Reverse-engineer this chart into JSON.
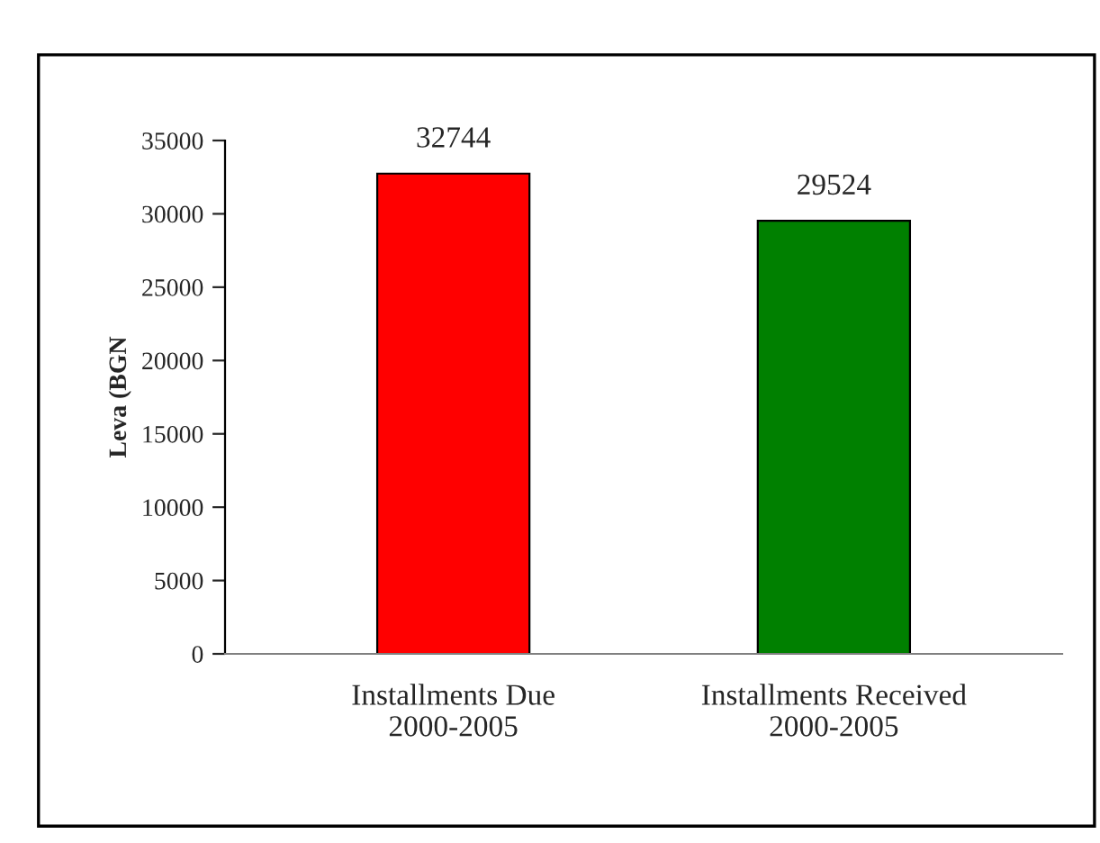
{
  "chart_data": {
    "type": "bar",
    "ylabel": "Leva (BGN",
    "categories": [
      "Installments Due\n2000-2005",
      "Installments Received\n2000-2005"
    ],
    "values": [
      32744,
      29524
    ],
    "colors": [
      "#ff0000",
      "#008000"
    ],
    "ylim": [
      0,
      35000
    ],
    "yticks": [
      0,
      5000,
      10000,
      15000,
      20000,
      25000,
      30000,
      35000
    ],
    "data_labels": true,
    "grid": false,
    "legend": false
  }
}
